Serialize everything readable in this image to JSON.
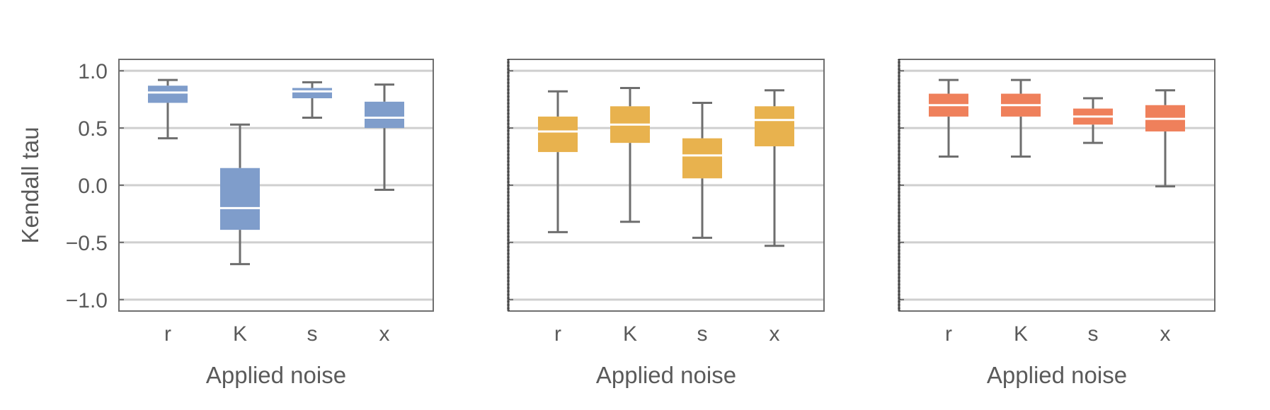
{
  "chart_data": [
    {
      "type": "boxplot",
      "xlabel": "Applied noise",
      "ylabel": "Kendall tau",
      "ylim": [
        -1.1,
        1.1
      ],
      "yticks": [
        1.0,
        0.5,
        0.0,
        -0.5,
        -1.0
      ],
      "ytick_labels": [
        "1.0",
        "0.5",
        "0.0",
        "−0.5",
        "−1.0"
      ],
      "grid": true,
      "show_ytick_labels": true,
      "color": "#7f9dcb",
      "categories": [
        "r",
        "K",
        "s",
        "x"
      ],
      "boxes": [
        {
          "min": 0.41,
          "q1": 0.72,
          "median": 0.81,
          "q3": 0.87,
          "max": 0.92
        },
        {
          "min": -0.69,
          "q1": -0.39,
          "median": -0.2,
          "q3": 0.15,
          "max": 0.53
        },
        {
          "min": 0.59,
          "q1": 0.76,
          "median": 0.82,
          "q3": 0.85,
          "max": 0.9
        },
        {
          "min": -0.04,
          "q1": 0.5,
          "median": 0.59,
          "q3": 0.73,
          "max": 0.88
        }
      ]
    },
    {
      "type": "boxplot",
      "xlabel": "Applied noise",
      "ylabel": "",
      "ylim": [
        -1.1,
        1.1
      ],
      "yticks": [
        1.0,
        0.5,
        0.0,
        -0.5,
        -1.0
      ],
      "ytick_labels": [
        "",
        "",
        "",
        "",
        ""
      ],
      "grid": true,
      "show_ytick_labels": false,
      "color": "#e8b24e",
      "categories": [
        "r",
        "K",
        "s",
        "x"
      ],
      "boxes": [
        {
          "min": -0.41,
          "q1": 0.29,
          "median": 0.47,
          "q3": 0.6,
          "max": 0.82
        },
        {
          "min": -0.32,
          "q1": 0.37,
          "median": 0.53,
          "q3": 0.69,
          "max": 0.85
        },
        {
          "min": -0.46,
          "q1": 0.06,
          "median": 0.26,
          "q3": 0.41,
          "max": 0.72
        },
        {
          "min": -0.53,
          "q1": 0.34,
          "median": 0.57,
          "q3": 0.69,
          "max": 0.83
        }
      ]
    },
    {
      "type": "boxplot",
      "xlabel": "Applied noise",
      "ylabel": "",
      "ylim": [
        -1.1,
        1.1
      ],
      "yticks": [
        1.0,
        0.5,
        0.0,
        -0.5,
        -1.0
      ],
      "ytick_labels": [
        "",
        "",
        "",
        "",
        ""
      ],
      "grid": true,
      "show_ytick_labels": false,
      "color": "#ef805b",
      "categories": [
        "r",
        "K",
        "s",
        "x"
      ],
      "boxes": [
        {
          "min": 0.25,
          "q1": 0.6,
          "median": 0.7,
          "q3": 0.8,
          "max": 0.92
        },
        {
          "min": 0.25,
          "q1": 0.6,
          "median": 0.7,
          "q3": 0.8,
          "max": 0.92
        },
        {
          "min": 0.37,
          "q1": 0.53,
          "median": 0.6,
          "q3": 0.67,
          "max": 0.76
        },
        {
          "min": -0.01,
          "q1": 0.47,
          "median": 0.58,
          "q3": 0.7,
          "max": 0.83
        }
      ]
    }
  ]
}
